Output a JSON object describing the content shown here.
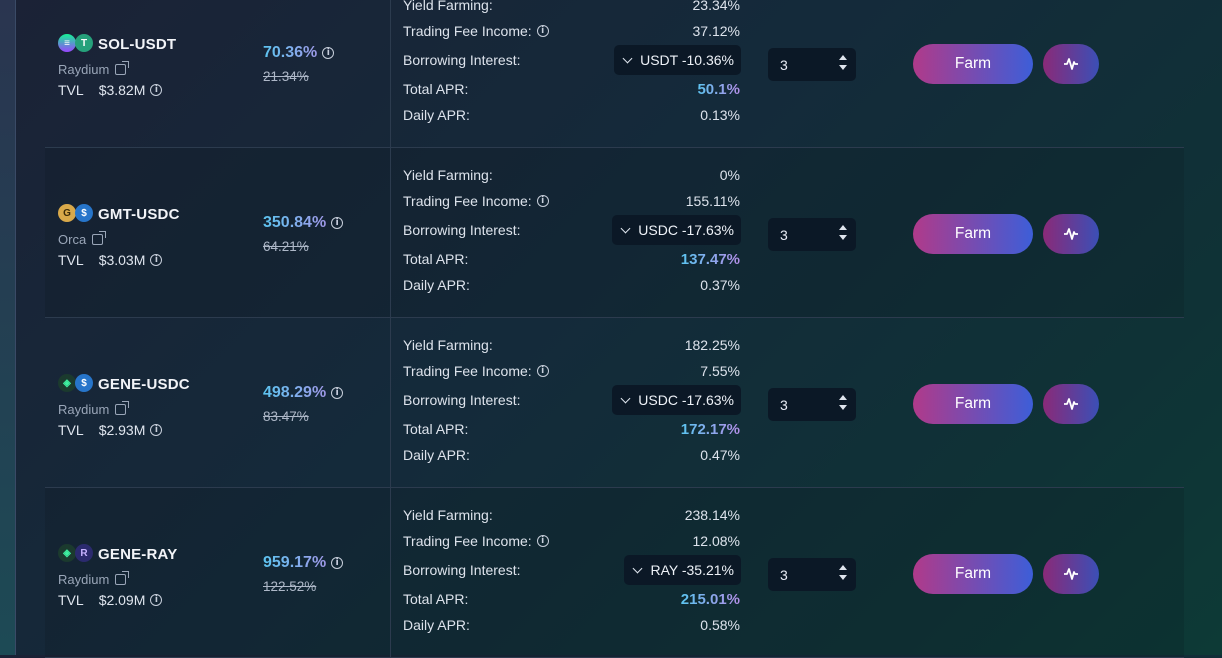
{
  "labels": {
    "yield_farming": "Yield Farming:",
    "trading_fee": "Trading Fee Income:",
    "borrowing": "Borrowing Interest:",
    "total_apr": "Total APR:",
    "daily_apr": "Daily APR:",
    "tvl": "TVL",
    "farm": "Farm",
    "info_glyph": "i"
  },
  "rows": [
    {
      "pair": "SOL-USDT",
      "dex": "Raydium",
      "tvl": "$3.82M",
      "apy": "70.36%",
      "apy_old": "21.34%",
      "yield_farming": "23.34%",
      "trading_fee": "37.12%",
      "borrowing": "USDT -10.36%",
      "total_apr": "50.1%",
      "daily_apr": "0.13%",
      "leverage": "3",
      "token_icons": [
        "sol-token-icon",
        "usdt-token-icon"
      ]
    },
    {
      "pair": "GMT-USDC",
      "dex": "Orca",
      "tvl": "$3.03M",
      "apy": "350.84%",
      "apy_old": "64.21%",
      "yield_farming": "0%",
      "trading_fee": "155.11%",
      "borrowing": "USDC -17.63%",
      "total_apr": "137.47%",
      "daily_apr": "0.37%",
      "leverage": "3",
      "token_icons": [
        "gmt-token-icon",
        "usdc-token-icon"
      ]
    },
    {
      "pair": "GENE-USDC",
      "dex": "Raydium",
      "tvl": "$2.93M",
      "apy": "498.29%",
      "apy_old": "83.47%",
      "yield_farming": "182.25%",
      "trading_fee": "7.55%",
      "borrowing": "USDC -17.63%",
      "total_apr": "172.17%",
      "daily_apr": "0.47%",
      "leverage": "3",
      "token_icons": [
        "gene-token-icon",
        "usdc-token-icon"
      ]
    },
    {
      "pair": "GENE-RAY",
      "dex": "Raydium",
      "tvl": "$2.09M",
      "apy": "959.17%",
      "apy_old": "122.52%",
      "yield_farming": "238.14%",
      "trading_fee": "12.08%",
      "borrowing": "RAY -35.21%",
      "total_apr": "215.01%",
      "daily_apr": "0.58%",
      "leverage": "3",
      "token_icons": [
        "gene-token-icon",
        "ray-token-icon"
      ]
    }
  ]
}
